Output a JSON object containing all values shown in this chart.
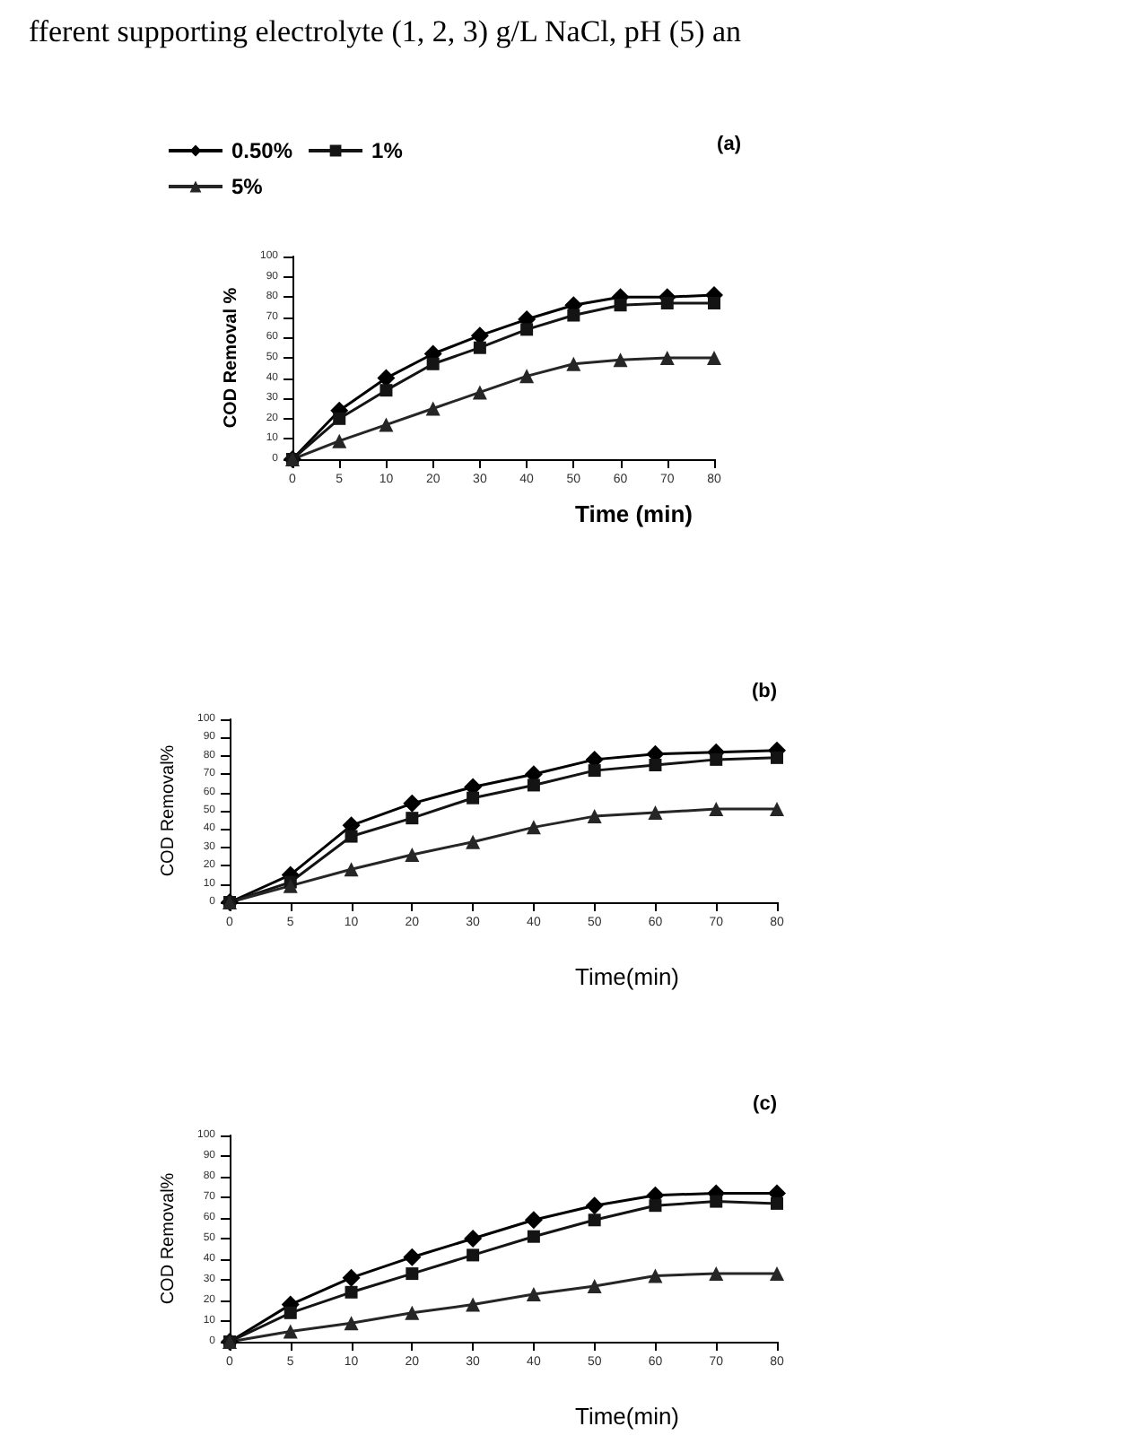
{
  "chart_data": [
    {
      "type": "line",
      "title": "(a)",
      "annotations": [
        "fferent supporting electrolyte (1, 2, 3) g/L NaCl, pH (5) an"
      ],
      "xlabel": "Time (min)",
      "ylabel": "COD Removal %",
      "categories": [
        "0",
        "5",
        "10",
        "20",
        "30",
        "40",
        "50",
        "60",
        "70",
        "80"
      ],
      "series": [
        {
          "name": "0.50%",
          "color": "#000000",
          "marker": "diamond",
          "values": [
            0,
            24,
            40,
            52,
            61,
            69,
            76,
            80,
            80,
            81
          ]
        },
        {
          "name": "1%",
          "color": "#141414",
          "marker": "square",
          "values": [
            0,
            20,
            34,
            47,
            55,
            64,
            71,
            76,
            77,
            77
          ]
        },
        {
          "name": "5%",
          "color": "#262626",
          "marker": "triangle",
          "values": [
            0,
            9,
            17,
            25,
            33,
            41,
            47,
            49,
            50,
            50
          ]
        }
      ],
      "ylim": [
        0,
        100
      ],
      "yticks": [
        0,
        10,
        20,
        30,
        40,
        50,
        60,
        70,
        80,
        90,
        100
      ],
      "grid": false,
      "legend": "top left"
    },
    {
      "type": "line",
      "title": "(b)",
      "xlabel": "Time(min)",
      "ylabel": "COD Removal%",
      "categories": [
        "0",
        "5",
        "10",
        "20",
        "30",
        "40",
        "50",
        "60",
        "70",
        "80"
      ],
      "series": [
        {
          "color": "#000000",
          "marker": "diamond",
          "values": [
            0,
            15,
            42,
            54,
            63,
            70,
            78,
            81,
            82,
            83
          ]
        },
        {
          "color": "#141414",
          "marker": "square",
          "values": [
            0,
            11,
            36,
            46,
            57,
            64,
            72,
            75,
            78,
            79
          ]
        },
        {
          "color": "#262626",
          "marker": "triangle",
          "values": [
            0,
            9,
            18,
            26,
            33,
            41,
            47,
            49,
            51,
            51
          ]
        }
      ],
      "ylim": [
        0,
        100
      ],
      "yticks": [
        0,
        10,
        20,
        30,
        40,
        50,
        60,
        70,
        80,
        90,
        100
      ],
      "grid": false,
      "legend": false
    },
    {
      "type": "line",
      "title": "(c)",
      "xlabel": "Time(min)",
      "ylabel": "COD Removal%",
      "categories": [
        "0",
        "5",
        "10",
        "20",
        "30",
        "40",
        "50",
        "60",
        "70",
        "80"
      ],
      "series": [
        {
          "color": "#000000",
          "marker": "diamond",
          "values": [
            0,
            18,
            31,
            41,
            50,
            59,
            66,
            71,
            72,
            72
          ]
        },
        {
          "color": "#141414",
          "marker": "square",
          "values": [
            0,
            14,
            24,
            33,
            42,
            51,
            59,
            66,
            68,
            67
          ]
        },
        {
          "color": "#262626",
          "marker": "triangle",
          "values": [
            0,
            5,
            9,
            14,
            18,
            23,
            27,
            32,
            33,
            33
          ]
        }
      ],
      "ylim": [
        0,
        100
      ],
      "yticks": [
        0,
        10,
        20,
        30,
        40,
        50,
        60,
        70,
        80,
        90,
        100
      ],
      "grid": false,
      "legend": false
    }
  ]
}
